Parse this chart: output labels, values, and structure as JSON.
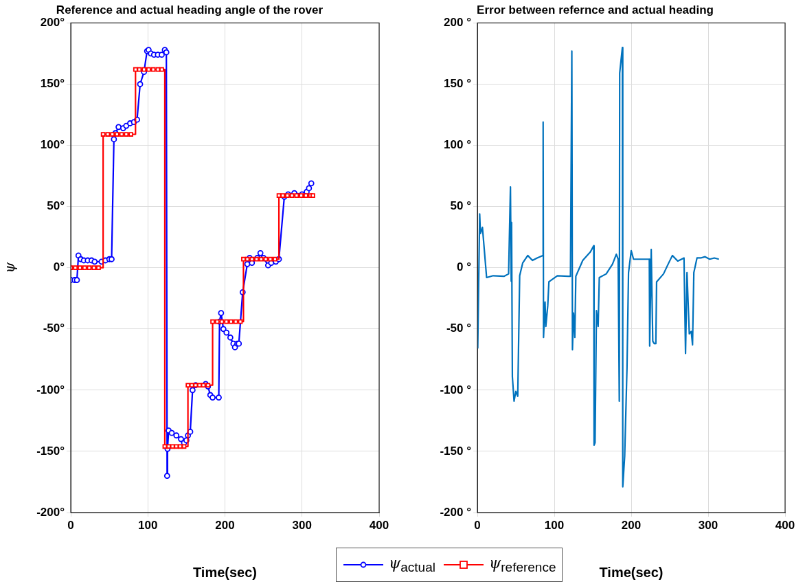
{
  "chart_data": [
    {
      "type": "line",
      "title": "Reference and actual heading angle of the rover",
      "xlabel": "Time(sec)",
      "ylabel": "ψ",
      "xlim": [
        0,
        400
      ],
      "xticks": [
        0,
        100,
        200,
        300,
        400
      ],
      "ylim": [
        -200,
        200
      ],
      "yticks": [
        {
          "value": -200,
          "label": "-200°"
        },
        {
          "value": -150,
          "label": "-150°"
        },
        {
          "value": -100,
          "label": "-100°"
        },
        {
          "value": -50,
          "label": "-50°"
        },
        {
          "value": 0,
          "label": "0°"
        },
        {
          "value": 50,
          "label": "50°"
        },
        {
          "value": 100,
          "label": "100°"
        },
        {
          "value": 150,
          "label": "150°"
        },
        {
          "value": 200,
          "label": "200°"
        }
      ],
      "grid": true,
      "legend": "bottom",
      "series": [
        {
          "name": "ψ$_{actual}$",
          "color": "#0000ff",
          "marker": "circle",
          "x": [
            0,
            5,
            8,
            10,
            13,
            17,
            22,
            27,
            31,
            40,
            45,
            50,
            53,
            56,
            58,
            62,
            68,
            72,
            77,
            82,
            86,
            90,
            95,
            99,
            101,
            104,
            108,
            113,
            118,
            122,
            124,
            125,
            125.5,
            127,
            131,
            137,
            143,
            147,
            150,
            152,
            155,
            158,
            162,
            175,
            178,
            181,
            184,
            192,
            193,
            195,
            198,
            202,
            207,
            211,
            213,
            216,
            218,
            223,
            229,
            232,
            235,
            242,
            246,
            250,
            256,
            260,
            266,
            270,
            277,
            282,
            290,
            300,
            306,
            309,
            312
          ],
          "values": [
            -10,
            -10,
            -10,
            10,
            7,
            6,
            6,
            6,
            5,
            5,
            6,
            7,
            7,
            105,
            110,
            115,
            114,
            116,
            118,
            119,
            121,
            150,
            160,
            177,
            178,
            175,
            174,
            174,
            174,
            178,
            176,
            -170,
            -148,
            -133,
            -135,
            -137,
            -140,
            -143,
            -141,
            -137,
            -134,
            -100,
            -96,
            -95,
            -97,
            -104,
            -106,
            -106,
            -44,
            -37,
            -50,
            -53,
            -57,
            -62,
            -65,
            -62,
            -62,
            -20,
            3,
            8,
            4,
            8,
            12,
            8,
            2,
            4,
            5,
            7,
            58,
            60,
            61,
            60,
            62,
            65,
            69
          ]
        },
        {
          "name": "ψ$_{reference}$",
          "color": "#ff0000",
          "type": "step",
          "marker": "square",
          "x": [
            0,
            6,
            12,
            18,
            24,
            30,
            36,
            42,
            48,
            54,
            60,
            66,
            72,
            78,
            84,
            89,
            95,
            101,
            107,
            113,
            118,
            122,
            127,
            132,
            137,
            142,
            147,
            152,
            157,
            162,
            167,
            172,
            178,
            184,
            190,
            196,
            202,
            208,
            214,
            220,
            224,
            229,
            235,
            241,
            247,
            253,
            259,
            265,
            270,
            275,
            281,
            287,
            293,
            299,
            305,
            311,
            314
          ],
          "values": [
            0,
            0,
            0,
            0,
            0,
            0,
            0,
            109,
            109,
            109,
            109,
            109,
            109,
            109,
            162,
            162,
            162,
            162,
            162,
            162,
            162,
            -146,
            -146,
            -146,
            -146,
            -146,
            -146,
            -96,
            -96,
            -96,
            -96,
            -96,
            -96,
            -44,
            -44,
            -44,
            -44,
            -44,
            -44,
            -44,
            7,
            7,
            7,
            7,
            7,
            7,
            7,
            7,
            59,
            59,
            59,
            59,
            59,
            59,
            59,
            59,
            59
          ]
        }
      ]
    },
    {
      "type": "line",
      "title": "Error between refernce and actual heading",
      "xlabel": "Time(sec)",
      "xlim": [
        0,
        400
      ],
      "xticks": [
        0,
        100,
        200,
        300,
        400
      ],
      "ylim": [
        -200,
        200
      ],
      "yticks": [
        {
          "value": -200,
          "label": "-200 °"
        },
        {
          "value": -150,
          "label": "-150 °"
        },
        {
          "value": -100,
          "label": "-100 °"
        },
        {
          "value": -50,
          "label": "-50 °"
        },
        {
          "value": 0,
          "label": "0 °"
        },
        {
          "value": 50,
          "label": "50 °"
        },
        {
          "value": 100,
          "label": "100 °"
        },
        {
          "value": 150,
          "label": "150 °"
        },
        {
          "value": 200,
          "label": "200 °"
        }
      ],
      "grid": true,
      "series": [
        {
          "color": "#0072bd",
          "x": [
            0.5,
            3,
            4,
            6.6,
            12,
            20.6,
            34.5,
            40.6,
            43,
            44,
            44.5,
            45.5,
            47.7,
            50,
            52.5,
            55,
            59,
            65.5,
            71.6,
            77.7,
            85,
            85.5,
            86,
            88,
            89,
            91.5,
            93,
            104,
            118,
            121,
            122.8,
            123.6,
            125,
            126.7,
            128,
            137,
            147,
            151.3,
            151.7,
            153,
            154.8,
            157,
            158.5,
            167.5,
            175.7,
            180.6,
            183,
            184.5,
            185,
            188.5,
            189,
            191.5,
            194.5,
            196.5,
            200,
            203,
            213,
            223.5,
            224,
            226,
            228,
            230,
            232,
            233,
            242,
            248,
            253.5,
            260.5,
            268.6,
            270.6,
            272.5,
            275.5,
            278,
            279.7,
            281.4,
            285.5,
            290.4,
            296,
            302,
            308,
            314
          ],
          "values": [
            -66,
            44,
            28,
            33,
            -8,
            -6.5,
            -7,
            -5,
            66,
            -11,
            37,
            -89,
            -109,
            -101,
            -105,
            -6.5,
            4,
            10,
            6,
            8,
            10,
            119,
            -57,
            -28,
            -48,
            -31,
            -11.5,
            -6.5,
            -7,
            -7,
            177,
            -67,
            -37,
            -57,
            -7,
            6,
            13,
            18,
            -145,
            -143,
            -35,
            -48,
            -8,
            -5,
            3,
            11,
            7,
            -109,
            159,
            180,
            -179,
            -154,
            -82,
            -4,
            14,
            7,
            7,
            7,
            -64,
            15,
            -60,
            -62,
            -62,
            -11.5,
            -5,
            3,
            10,
            5.5,
            8,
            -70,
            -4,
            -54,
            -52,
            -63,
            -4,
            8,
            8,
            9,
            7,
            8,
            7
          ]
        }
      ]
    }
  ]
}
